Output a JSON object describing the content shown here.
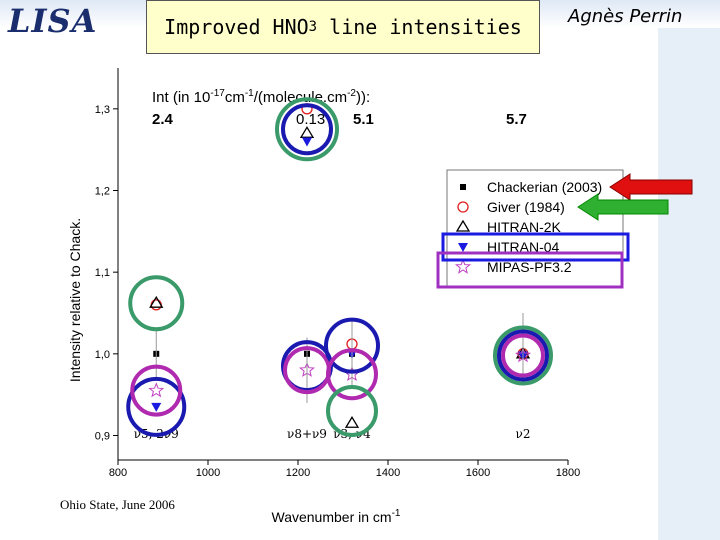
{
  "header": {
    "logo_text": "LISA",
    "title_main": "Improved HNO",
    "title_sub": "3",
    "title_tail": " line intensities",
    "author": "Agnès Perrin"
  },
  "footer": {
    "text": "Ohio State, June 2006"
  },
  "chart_data": {
    "type": "scatter",
    "title": "",
    "xlabel": "Wavenumber in cm",
    "xlabel_sup": "-1",
    "ylabel": "Intensity relative to Chack.",
    "xlim": [
      800,
      1800
    ],
    "ylim": [
      0.87,
      1.35
    ],
    "xticks": [
      800,
      1000,
      1200,
      1400,
      1600,
      1800
    ],
    "xtick_labels": [
      "800",
      "1000",
      "1200",
      "1400",
      "1600",
      "1800"
    ],
    "yticks": [
      0.9,
      1.0,
      1.1,
      1.2,
      1.3
    ],
    "ytick_labels": [
      "0,9",
      "1,0",
      "1,1",
      "1,2",
      "1,3"
    ],
    "int_header": {
      "line1": "Int (in 10",
      "line1_sup1": "-17",
      "line1_mid": "cm",
      "line1_sup2": "-1",
      "line1_mid2": "/(molecule.cm",
      "line1_sup3": "-2",
      "line1_end": ")):",
      "values": [
        "2.4",
        "0.13",
        "5.1",
        "5.7"
      ]
    },
    "legend": [
      {
        "name": "Chackerian (2003)",
        "marker": "square-filled",
        "color": "#000000"
      },
      {
        "name": "Giver (1984)",
        "marker": "circle-open",
        "color": "#e02020"
      },
      {
        "name": "HITRAN-2K",
        "marker": "triangle-up-open",
        "color": "#000000"
      },
      {
        "name": "HITRAN-04",
        "marker": "triangle-down-filled",
        "color": "#1a1ae0"
      },
      {
        "name": "MIPAS-PF3.2",
        "marker": "star-open",
        "color": "#c040c0"
      }
    ],
    "series": [
      {
        "name": "Chackerian (2003)",
        "x": [
          885,
          1220,
          1320,
          1700
        ],
        "y": [
          1.0,
          1.0,
          1.0,
          1.0
        ]
      },
      {
        "name": "Giver (1984)",
        "x": [
          885,
          1220,
          1320,
          1700
        ],
        "y": [
          1.06,
          1.3,
          1.012,
          1.0
        ]
      },
      {
        "name": "HITRAN-2K",
        "x": [
          885,
          1220,
          1320,
          1700
        ],
        "y": [
          1.062,
          1.27,
          0.915,
          1.0
        ]
      },
      {
        "name": "HITRAN-04",
        "x": [
          885,
          1220,
          1320,
          1700
        ],
        "y": [
          0.935,
          1.26,
          1.0,
          0.998
        ]
      },
      {
        "name": "MIPAS-PF3.2",
        "x": [
          885,
          1220,
          1320,
          1700
        ],
        "y": [
          0.955,
          0.98,
          0.975,
          0.998
        ]
      }
    ],
    "band_labels": [
      {
        "text": "ν5, 2ν9",
        "x": 885
      },
      {
        "text": "ν8+ν9",
        "x": 1220
      },
      {
        "text": "ν3, ν4",
        "x": 1320
      },
      {
        "text": "ν2",
        "x": 1700
      }
    ],
    "colors": {
      "teal_ring": "#3a9a6a",
      "navy_ring": "#1a1ab0",
      "magenta_ring": "#b02ab0",
      "legend_box_blue": "#1a1ae0",
      "legend_box_purple": "#a030c0",
      "arrow_red": "#e01010",
      "arrow_green": "#30b030"
    }
  }
}
